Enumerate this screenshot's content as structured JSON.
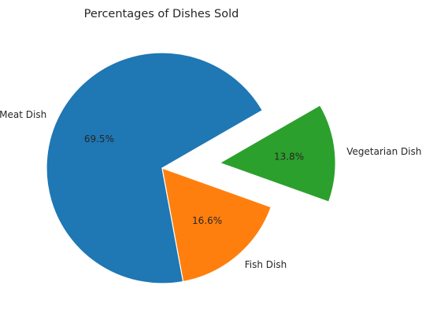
{
  "chart_data": {
    "type": "pie",
    "title": "Percentages of Dishes Sold",
    "slices": [
      {
        "label": "Meat Dish",
        "value": 69.5,
        "pct_label": "69.5%",
        "color": "#1f77b4",
        "explode": 0
      },
      {
        "label": "Fish Dish",
        "value": 16.6,
        "pct_label": "16.6%",
        "color": "#ff7f0e",
        "explode": 0
      },
      {
        "label": "Vegetarian Dish",
        "value": 13.8,
        "pct_label": "13.8%",
        "color": "#2ca02c",
        "explode": 0.5
      }
    ],
    "start_angle_deg": 30,
    "counterclock": true,
    "legend": "none"
  }
}
